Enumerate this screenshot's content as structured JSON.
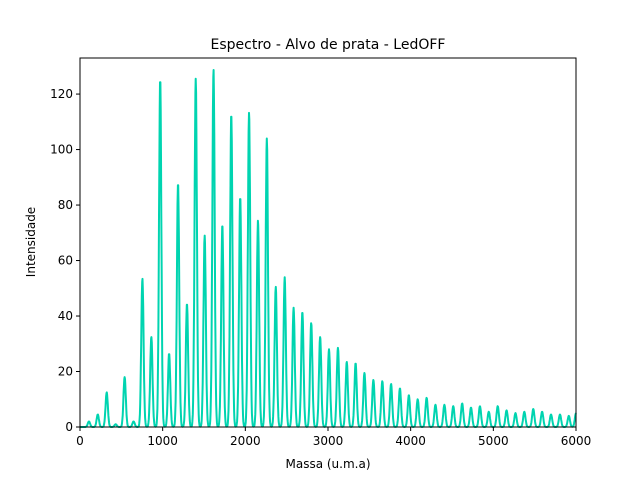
{
  "chart_data": {
    "type": "line",
    "title": "Espectro - Alvo de prata - LedOFF",
    "xlabel": "Massa (u.m.a)",
    "ylabel": "Intensidade",
    "xlim": [
      0,
      6000
    ],
    "ylim": [
      0,
      133
    ],
    "xticks": [
      0,
      1000,
      2000,
      3000,
      4000,
      5000,
      6000
    ],
    "yticks": [
      0,
      20,
      40,
      60,
      80,
      100,
      120
    ],
    "grid": false,
    "series": [
      {
        "color": "#00d4b0",
        "peaks": [
          [
            108,
            2
          ],
          [
            215,
            4.5
          ],
          [
            323,
            12.5
          ],
          [
            431,
            1
          ],
          [
            540,
            18
          ],
          [
            648,
            2
          ],
          [
            755,
            53.5
          ],
          [
            863,
            32.5
          ],
          [
            970,
            125.5
          ],
          [
            1078,
            26.5
          ],
          [
            1186,
            88
          ],
          [
            1294,
            44.5
          ],
          [
            1400,
            125.5
          ],
          [
            1508,
            69
          ],
          [
            1615,
            129
          ],
          [
            1722,
            73
          ],
          [
            1830,
            113
          ],
          [
            1938,
            83
          ],
          [
            2045,
            113.5
          ],
          [
            2153,
            74.5
          ],
          [
            2260,
            104
          ],
          [
            2368,
            50.5
          ],
          [
            2476,
            54
          ],
          [
            2584,
            43
          ],
          [
            2690,
            41.5
          ],
          [
            2797,
            37.5
          ],
          [
            2905,
            32.5
          ],
          [
            3012,
            28
          ],
          [
            3120,
            28.5
          ],
          [
            3227,
            23.5
          ],
          [
            3334,
            23
          ],
          [
            3441,
            19.5
          ],
          [
            3549,
            17
          ],
          [
            3657,
            16.5
          ],
          [
            3763,
            15.5
          ],
          [
            3870,
            14
          ],
          [
            3978,
            11.5
          ],
          [
            4085,
            10
          ],
          [
            4193,
            10.5
          ],
          [
            4300,
            8
          ],
          [
            4408,
            8
          ],
          [
            4515,
            7.5
          ],
          [
            4623,
            8.5
          ],
          [
            4730,
            7
          ],
          [
            4838,
            7.5
          ],
          [
            4945,
            5.5
          ],
          [
            5053,
            7.5
          ],
          [
            5160,
            6
          ],
          [
            5268,
            5
          ],
          [
            5375,
            5.5
          ],
          [
            5483,
            6.5
          ],
          [
            5590,
            5.5
          ],
          [
            5698,
            4.5
          ],
          [
            5806,
            4.5
          ],
          [
            5913,
            4
          ],
          [
            6000,
            5
          ]
        ]
      }
    ]
  }
}
